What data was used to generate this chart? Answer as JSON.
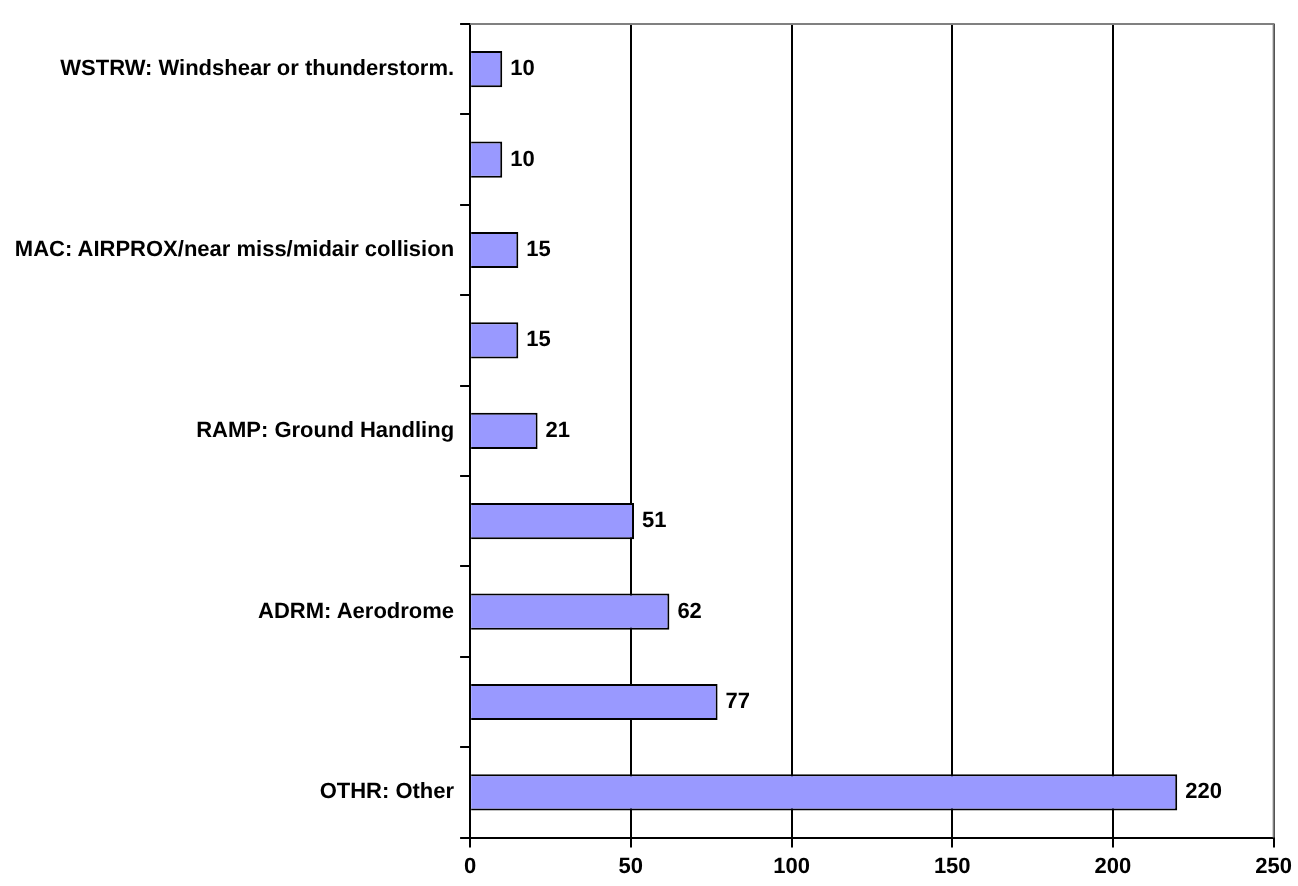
{
  "chart_data": {
    "type": "bar",
    "orientation": "horizontal",
    "categories": [
      "WSTRW: Windshear or thunderstorm.",
      null,
      "MAC: AIRPROX/near miss/midair collision",
      null,
      "RAMP: Ground Handling",
      null,
      "ADRM: Aerodrome",
      null,
      "OTHR: Other"
    ],
    "values": [
      10,
      10,
      15,
      15,
      21,
      51,
      62,
      77,
      220
    ],
    "color": "#9999ff",
    "xlim": [
      0,
      250
    ],
    "xticks": [
      0,
      50,
      100,
      150,
      200,
      250
    ],
    "grid": "x",
    "data_labels": true
  }
}
